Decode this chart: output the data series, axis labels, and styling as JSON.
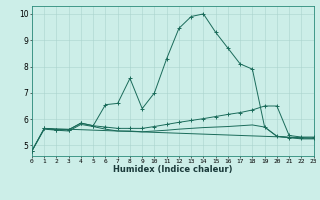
{
  "xlabel": "Humidex (Indice chaleur)",
  "background_color": "#cceee8",
  "grid_color": "#aad4ce",
  "line_color": "#1a6b5a",
  "x_ticks": [
    0,
    1,
    2,
    3,
    4,
    5,
    6,
    7,
    8,
    9,
    10,
    11,
    12,
    13,
    14,
    15,
    16,
    17,
    18,
    19,
    20,
    21,
    22,
    23
  ],
  "y_ticks": [
    5,
    6,
    7,
    8,
    9,
    10
  ],
  "xlim": [
    0,
    23
  ],
  "ylim": [
    4.6,
    10.3
  ],
  "lines": [
    {
      "x": [
        0,
        1,
        2,
        3,
        4,
        5,
        6,
        7,
        8,
        9,
        10,
        11,
        12,
        13,
        14,
        15,
        16,
        17,
        18,
        19,
        20,
        21,
        22,
        23
      ],
      "y": [
        4.8,
        5.65,
        5.6,
        5.6,
        5.85,
        5.75,
        6.55,
        6.6,
        7.55,
        6.4,
        7.0,
        8.3,
        9.45,
        9.9,
        10.0,
        9.3,
        8.7,
        8.1,
        7.9,
        5.7,
        5.35,
        5.3,
        5.28,
        5.28
      ],
      "marker": true
    },
    {
      "x": [
        0,
        1,
        2,
        3,
        4,
        5,
        6,
        7,
        8,
        9,
        10,
        11,
        12,
        13,
        14,
        15,
        16,
        17,
        18,
        19,
        20,
        21,
        22,
        23
      ],
      "y": [
        4.8,
        5.65,
        5.6,
        5.6,
        5.85,
        5.75,
        5.7,
        5.65,
        5.65,
        5.65,
        5.72,
        5.8,
        5.88,
        5.95,
        6.02,
        6.1,
        6.18,
        6.25,
        6.35,
        6.5,
        6.5,
        5.38,
        5.32,
        5.32
      ],
      "marker": true
    },
    {
      "x": [
        0,
        1,
        2,
        3,
        4,
        5,
        6,
        7,
        8,
        9,
        10,
        11,
        12,
        13,
        14,
        15,
        16,
        17,
        18,
        19,
        20,
        21,
        22,
        23
      ],
      "y": [
        4.8,
        5.62,
        5.58,
        5.55,
        5.8,
        5.72,
        5.62,
        5.55,
        5.55,
        5.52,
        5.55,
        5.58,
        5.62,
        5.65,
        5.68,
        5.7,
        5.72,
        5.75,
        5.78,
        5.7,
        5.35,
        5.3,
        5.25,
        5.25
      ],
      "marker": false
    },
    {
      "x": [
        1,
        23
      ],
      "y": [
        5.65,
        5.28
      ],
      "marker": false
    }
  ]
}
